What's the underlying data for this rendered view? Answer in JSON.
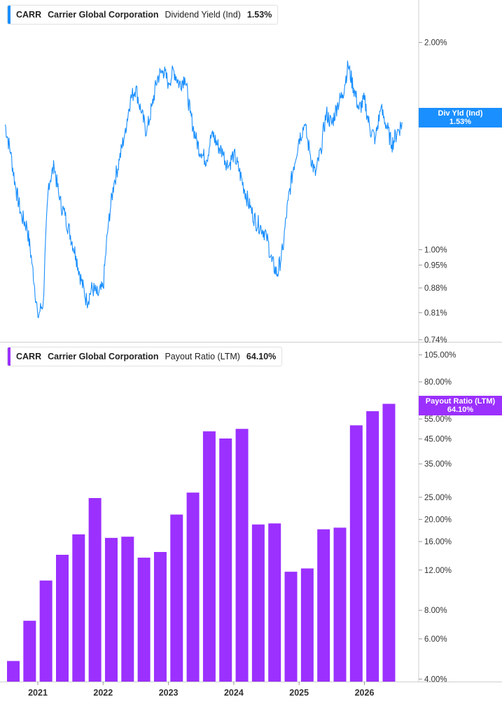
{
  "panels": [
    {
      "ticker": "CARR",
      "company": "Carrier Global Corporation",
      "metric": "Dividend Yield (Ind)",
      "value": "1.53%",
      "color": "#1a8fff",
      "tag_name": "Div Yld (Ind)",
      "tag_value": "1.53%"
    },
    {
      "ticker": "CARR",
      "company": "Carrier Global Corporation",
      "metric": "Payout Ratio (LTM)",
      "value": "64.10%",
      "color": "#9b30ff",
      "tag_name": "Payout Ratio (LTM)",
      "tag_value": "64.10%"
    }
  ],
  "chart_data": [
    {
      "type": "line",
      "title": "CARR Carrier Global Corporation Dividend Yield (Ind) 1.53%",
      "scale": "log",
      "ylim": [
        0.74,
        2.2
      ],
      "y_ticks": [
        "2.00%",
        "1.00%",
        "0.95%",
        "0.88%",
        "0.81%",
        "0.74%"
      ],
      "y_tick_values": [
        2.0,
        1.0,
        0.95,
        0.88,
        0.81,
        0.74
      ],
      "series": [
        {
          "name": "Div Yld (Ind)",
          "x": [
            "2020-07",
            "2020-08",
            "2020-09",
            "2020-10",
            "2020-11",
            "2020-12",
            "2021-01",
            "2021-02",
            "2021-03",
            "2021-04",
            "2021-05",
            "2021-06",
            "2021-07",
            "2021-08",
            "2021-09",
            "2021-10",
            "2021-11",
            "2021-12",
            "2022-01",
            "2022-02",
            "2022-03",
            "2022-04",
            "2022-05",
            "2022-06",
            "2022-07",
            "2022-08",
            "2022-09",
            "2022-10",
            "2022-11",
            "2022-12",
            "2023-01",
            "2023-02",
            "2023-03",
            "2023-04",
            "2023-05",
            "2023-06",
            "2023-07",
            "2023-08",
            "2023-09",
            "2023-10",
            "2023-11",
            "2023-12",
            "2024-01",
            "2024-02",
            "2024-03",
            "2024-04",
            "2024-05",
            "2024-06",
            "2024-07",
            "2024-08",
            "2024-09",
            "2024-10",
            "2024-11",
            "2024-12",
            "2025-01",
            "2025-02",
            "2025-03",
            "2025-04",
            "2025-05",
            "2025-06",
            "2025-07",
            "2025-08",
            "2025-09",
            "2025-10",
            "2025-11",
            "2025-12",
            "2026-01",
            "2026-02",
            "2026-03",
            "2026-04",
            "2026-05",
            "2026-06",
            "2026-07",
            "2026-08"
          ],
          "values": [
            1.52,
            1.38,
            1.22,
            1.12,
            1.08,
            0.95,
            0.8,
            0.84,
            1.25,
            1.32,
            1.18,
            1.12,
            1.05,
            0.98,
            0.9,
            0.84,
            0.88,
            0.86,
            0.88,
            1.1,
            1.25,
            1.35,
            1.48,
            1.65,
            1.72,
            1.58,
            1.48,
            1.62,
            1.78,
            1.82,
            1.75,
            1.82,
            1.74,
            1.78,
            1.58,
            1.45,
            1.38,
            1.35,
            1.48,
            1.42,
            1.38,
            1.32,
            1.38,
            1.3,
            1.22,
            1.15,
            1.1,
            1.08,
            1.05,
            0.96,
            0.92,
            1.0,
            1.18,
            1.32,
            1.45,
            1.52,
            1.38,
            1.28,
            1.4,
            1.58,
            1.52,
            1.62,
            1.68,
            1.85,
            1.72,
            1.6,
            1.65,
            1.5,
            1.45,
            1.6,
            1.52,
            1.42,
            1.48,
            1.53
          ]
        }
      ]
    },
    {
      "type": "bar",
      "title": "CARR Carrier Global Corporation Payout Ratio (LTM) 64.10%",
      "scale": "log",
      "ylim": [
        3.9,
        110
      ],
      "y_ticks": [
        "105.00%",
        "80.00%",
        "55.00%",
        "45.00%",
        "35.00%",
        "25.00%",
        "20.00%",
        "16.00%",
        "12.00%",
        "8.00%",
        "6.00%",
        "4.00%"
      ],
      "y_tick_values": [
        105,
        80,
        55,
        45,
        35,
        25,
        20,
        16,
        12,
        8,
        6,
        4
      ],
      "categories": [
        "2020Q3",
        "2020Q4",
        "2021Q1",
        "2021Q2",
        "2021Q3",
        "2021Q4",
        "2022Q1",
        "2022Q2",
        "2022Q3",
        "2022Q4",
        "2023Q1",
        "2023Q2",
        "2023Q3",
        "2023Q4",
        "2024Q1",
        "2024Q2",
        "2024Q3",
        "2024Q4",
        "2025Q1",
        "2025Q2",
        "2025Q3",
        "2025Q4",
        "2026Q1",
        "2026Q2"
      ],
      "series": [
        {
          "name": "Payout Ratio (LTM)",
          "values": [
            4.8,
            7.2,
            10.8,
            14.0,
            17.2,
            24.8,
            16.6,
            16.8,
            13.6,
            14.4,
            21.0,
            26.2,
            48.6,
            45.2,
            49.8,
            19.0,
            19.2,
            11.8,
            12.2,
            18.1,
            18.4,
            51.6,
            59.5,
            64.1
          ]
        }
      ]
    }
  ],
  "x_axis": {
    "labels": [
      "2021",
      "2022",
      "2023",
      "2024",
      "2025",
      "2026"
    ]
  }
}
